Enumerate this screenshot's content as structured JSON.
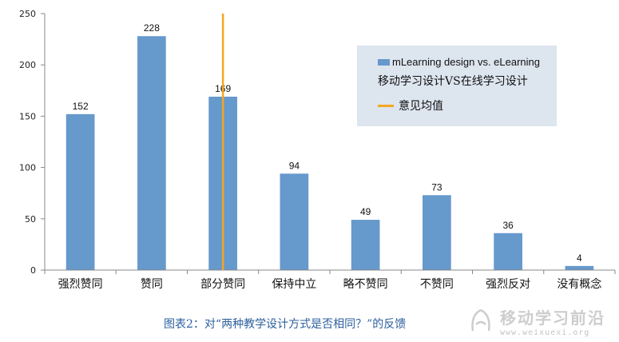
{
  "chart_data": {
    "type": "bar",
    "categories": [
      "强烈赞同",
      "赞同",
      "部分赞同",
      "保持中立",
      "略不赞同",
      "不赞同",
      "强烈反对",
      "没有概念"
    ],
    "values": [
      152,
      228,
      169,
      94,
      49,
      73,
      36,
      4
    ],
    "ylim": [
      0,
      250
    ],
    "yticks": [
      0,
      50,
      100,
      150,
      200,
      250
    ],
    "series_name": "mLearning design vs. eLearning",
    "series_name_cn": "移动学习设计VS在线学习设计",
    "mean_label": "意见均值",
    "mean_position_category": "部分赞同",
    "legend_placement": "top-right",
    "grid": false,
    "colors": {
      "bar": "#6699cc",
      "mean_line": "#f5a623"
    }
  },
  "caption": "图表2：对“两种教学设计方式是否相同？”的反馈",
  "watermark": {
    "main": "移动学习前沿",
    "url": "www.weixuexi.org"
  }
}
